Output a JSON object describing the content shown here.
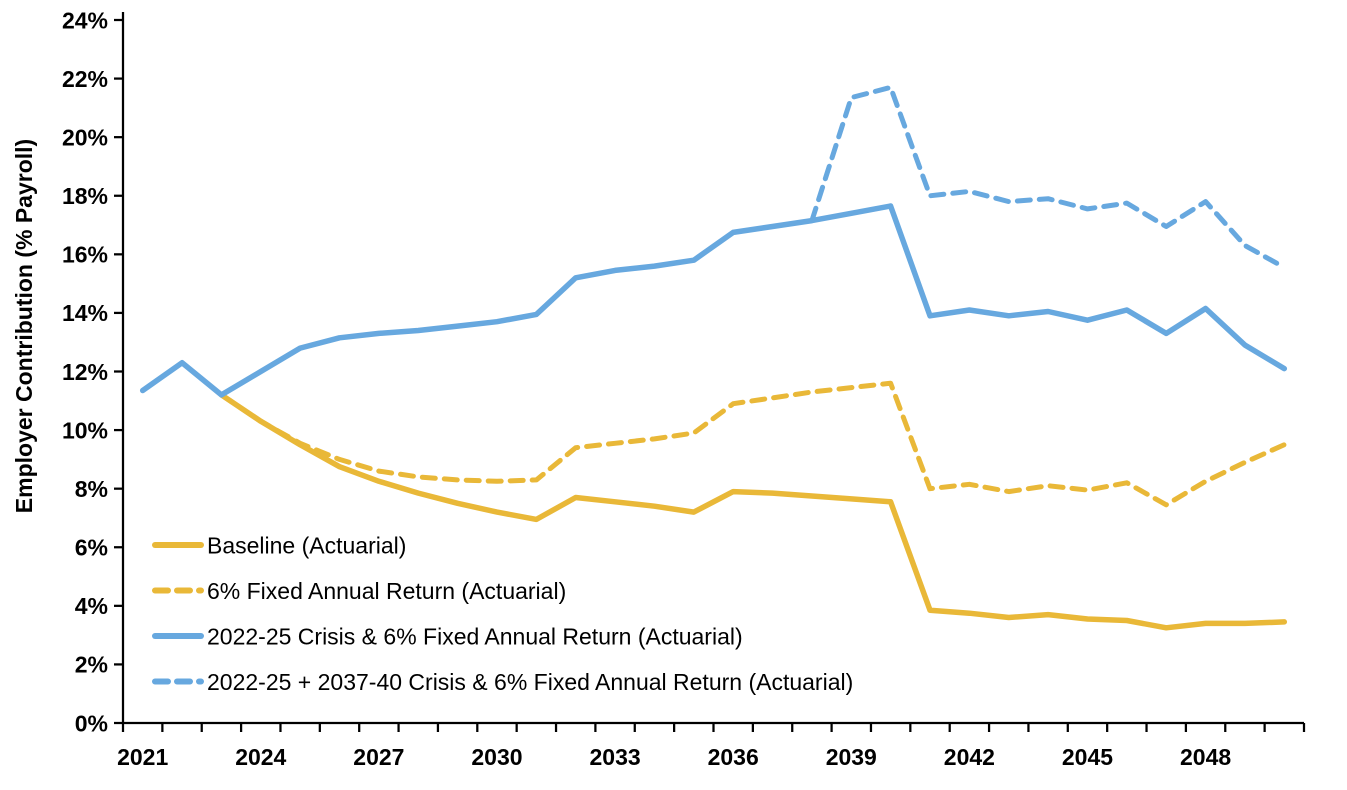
{
  "chart_data": {
    "type": "line",
    "title": "",
    "xlabel": "",
    "ylabel": "Employer Contribution (% Payroll)",
    "ylim": [
      0,
      24
    ],
    "y_tick_step": 2,
    "y_tick_labels": [
      "0%",
      "2%",
      "4%",
      "6%",
      "8%",
      "10%",
      "12%",
      "14%",
      "16%",
      "18%",
      "20%",
      "22%",
      "24%"
    ],
    "x": [
      2021,
      2022,
      2023,
      2024,
      2025,
      2026,
      2027,
      2028,
      2029,
      2030,
      2031,
      2032,
      2033,
      2034,
      2035,
      2036,
      2037,
      2038,
      2039,
      2040,
      2041,
      2042,
      2043,
      2044,
      2045,
      2046,
      2047,
      2048,
      2049,
      2050
    ],
    "x_tick_labels": [
      "2021",
      "2024",
      "2027",
      "2030",
      "2033",
      "2036",
      "2039",
      "2042",
      "2045",
      "2048"
    ],
    "grid": false,
    "legend_position": "inside-bottom-left",
    "axis_color": "#000000",
    "series": [
      {
        "name": "Baseline (Actuarial)",
        "color": "#E9B838",
        "dash": "solid",
        "values": [
          null,
          null,
          11.2,
          10.3,
          9.5,
          8.75,
          8.25,
          7.85,
          7.5,
          7.2,
          6.95,
          7.7,
          7.55,
          7.4,
          7.2,
          7.9,
          7.85,
          7.75,
          7.65,
          7.55,
          3.85,
          3.75,
          3.6,
          3.7,
          3.55,
          3.5,
          3.25,
          3.4,
          3.4,
          3.45
        ]
      },
      {
        "name": "6% Fixed Annual Return (Actuarial)",
        "color": "#E9B838",
        "dash": "dashed",
        "values": [
          null,
          null,
          11.2,
          10.3,
          9.55,
          9.0,
          8.6,
          8.4,
          8.3,
          8.25,
          8.3,
          9.4,
          9.55,
          9.7,
          9.9,
          10.9,
          11.1,
          11.3,
          11.45,
          11.6,
          8.0,
          8.15,
          7.9,
          8.1,
          7.95,
          8.2,
          7.45,
          8.25,
          8.9,
          9.5
        ]
      },
      {
        "name": "2022-25 Crisis & 6% Fixed Annual Return (Actuarial)",
        "color": "#67A8DF",
        "dash": "solid",
        "values": [
          11.35,
          12.3,
          11.2,
          12.0,
          12.8,
          13.15,
          13.3,
          13.4,
          13.55,
          13.7,
          13.95,
          15.2,
          15.45,
          15.6,
          15.8,
          16.75,
          16.95,
          17.15,
          17.4,
          17.65,
          13.9,
          14.1,
          13.9,
          14.05,
          13.75,
          14.1,
          13.3,
          14.15,
          12.9,
          12.1
        ]
      },
      {
        "name": "2022-25 + 2037-40 Crisis & 6% Fixed Annual Return (Actuarial)",
        "color": "#67A8DF",
        "dash": "dashed",
        "values": [
          null,
          null,
          null,
          null,
          null,
          null,
          null,
          null,
          null,
          null,
          null,
          null,
          null,
          null,
          null,
          null,
          null,
          17.15,
          21.35,
          21.7,
          18.0,
          18.15,
          17.8,
          17.9,
          17.55,
          17.75,
          16.95,
          17.8,
          16.3,
          15.55
        ]
      }
    ]
  }
}
